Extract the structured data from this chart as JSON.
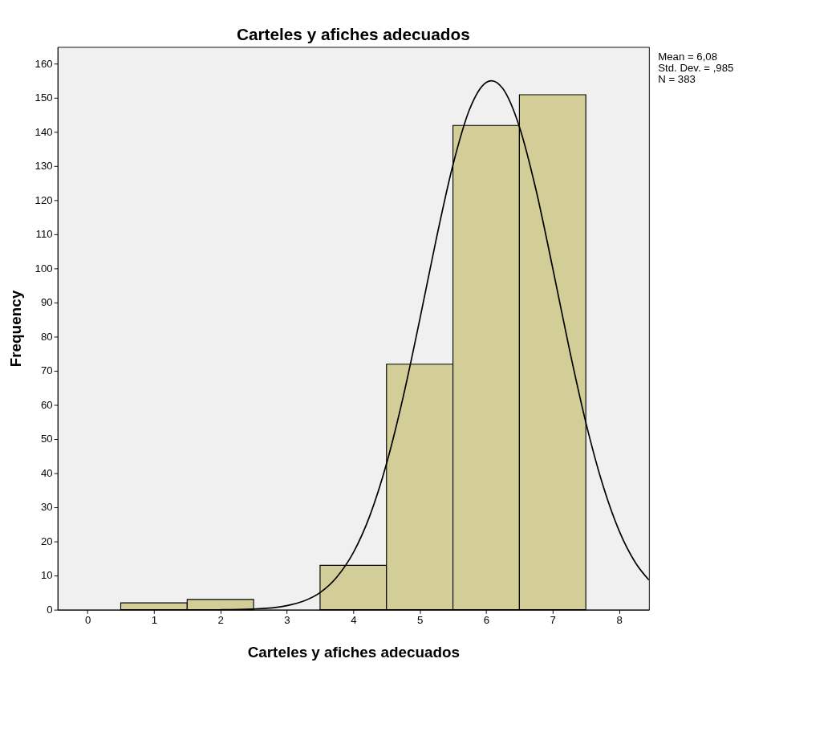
{
  "chart_data": {
    "type": "histogram",
    "title": "Carteles y afiches adecuados",
    "xlabel": "Carteles y afiches adecuados",
    "ylabel": "Frequency",
    "bins": [
      -0.5,
      0.5,
      1.5,
      2.5,
      3.5,
      4.5,
      5.5,
      6.5,
      7.5
    ],
    "values": [
      0,
      2,
      3,
      0,
      13,
      72,
      142,
      151
    ],
    "color": "#d3ce97",
    "series": [
      {
        "type": "line",
        "color": "#000000",
        "x": [
          2,
          2.5,
          3,
          3.25,
          3.5,
          3.75,
          4,
          4.25,
          4.5,
          4.75,
          5,
          5.25,
          5.5,
          5.75,
          6,
          6.08,
          6.25,
          6.5,
          6.75,
          7,
          7.25,
          7.5,
          7.75,
          8,
          8.25,
          8.45
        ],
        "values": [
          0,
          0.2,
          1.2,
          2.5,
          5,
          9.5,
          16.7,
          27.6,
          42.8,
          62.3,
          85,
          108.8,
          130.4,
          146.7,
          154.6,
          155.1,
          152.8,
          141.6,
          123.1,
          100.3,
          76.6,
          54.9,
          36.9,
          23.2,
          13.7,
          8.7
        ]
      }
    ],
    "xlim": [
      -0.45,
      8.45
    ],
    "ylim": [
      0,
      165
    ],
    "xticks": [
      0,
      1,
      2,
      3,
      4,
      5,
      6,
      7,
      8
    ],
    "yticks": [
      0,
      10,
      20,
      30,
      40,
      50,
      60,
      70,
      80,
      90,
      100,
      110,
      120,
      130,
      140,
      150,
      160
    ],
    "annotations": [
      "Mean = 6,08",
      "Std. Dev. = ,985",
      "N = 383"
    ]
  }
}
